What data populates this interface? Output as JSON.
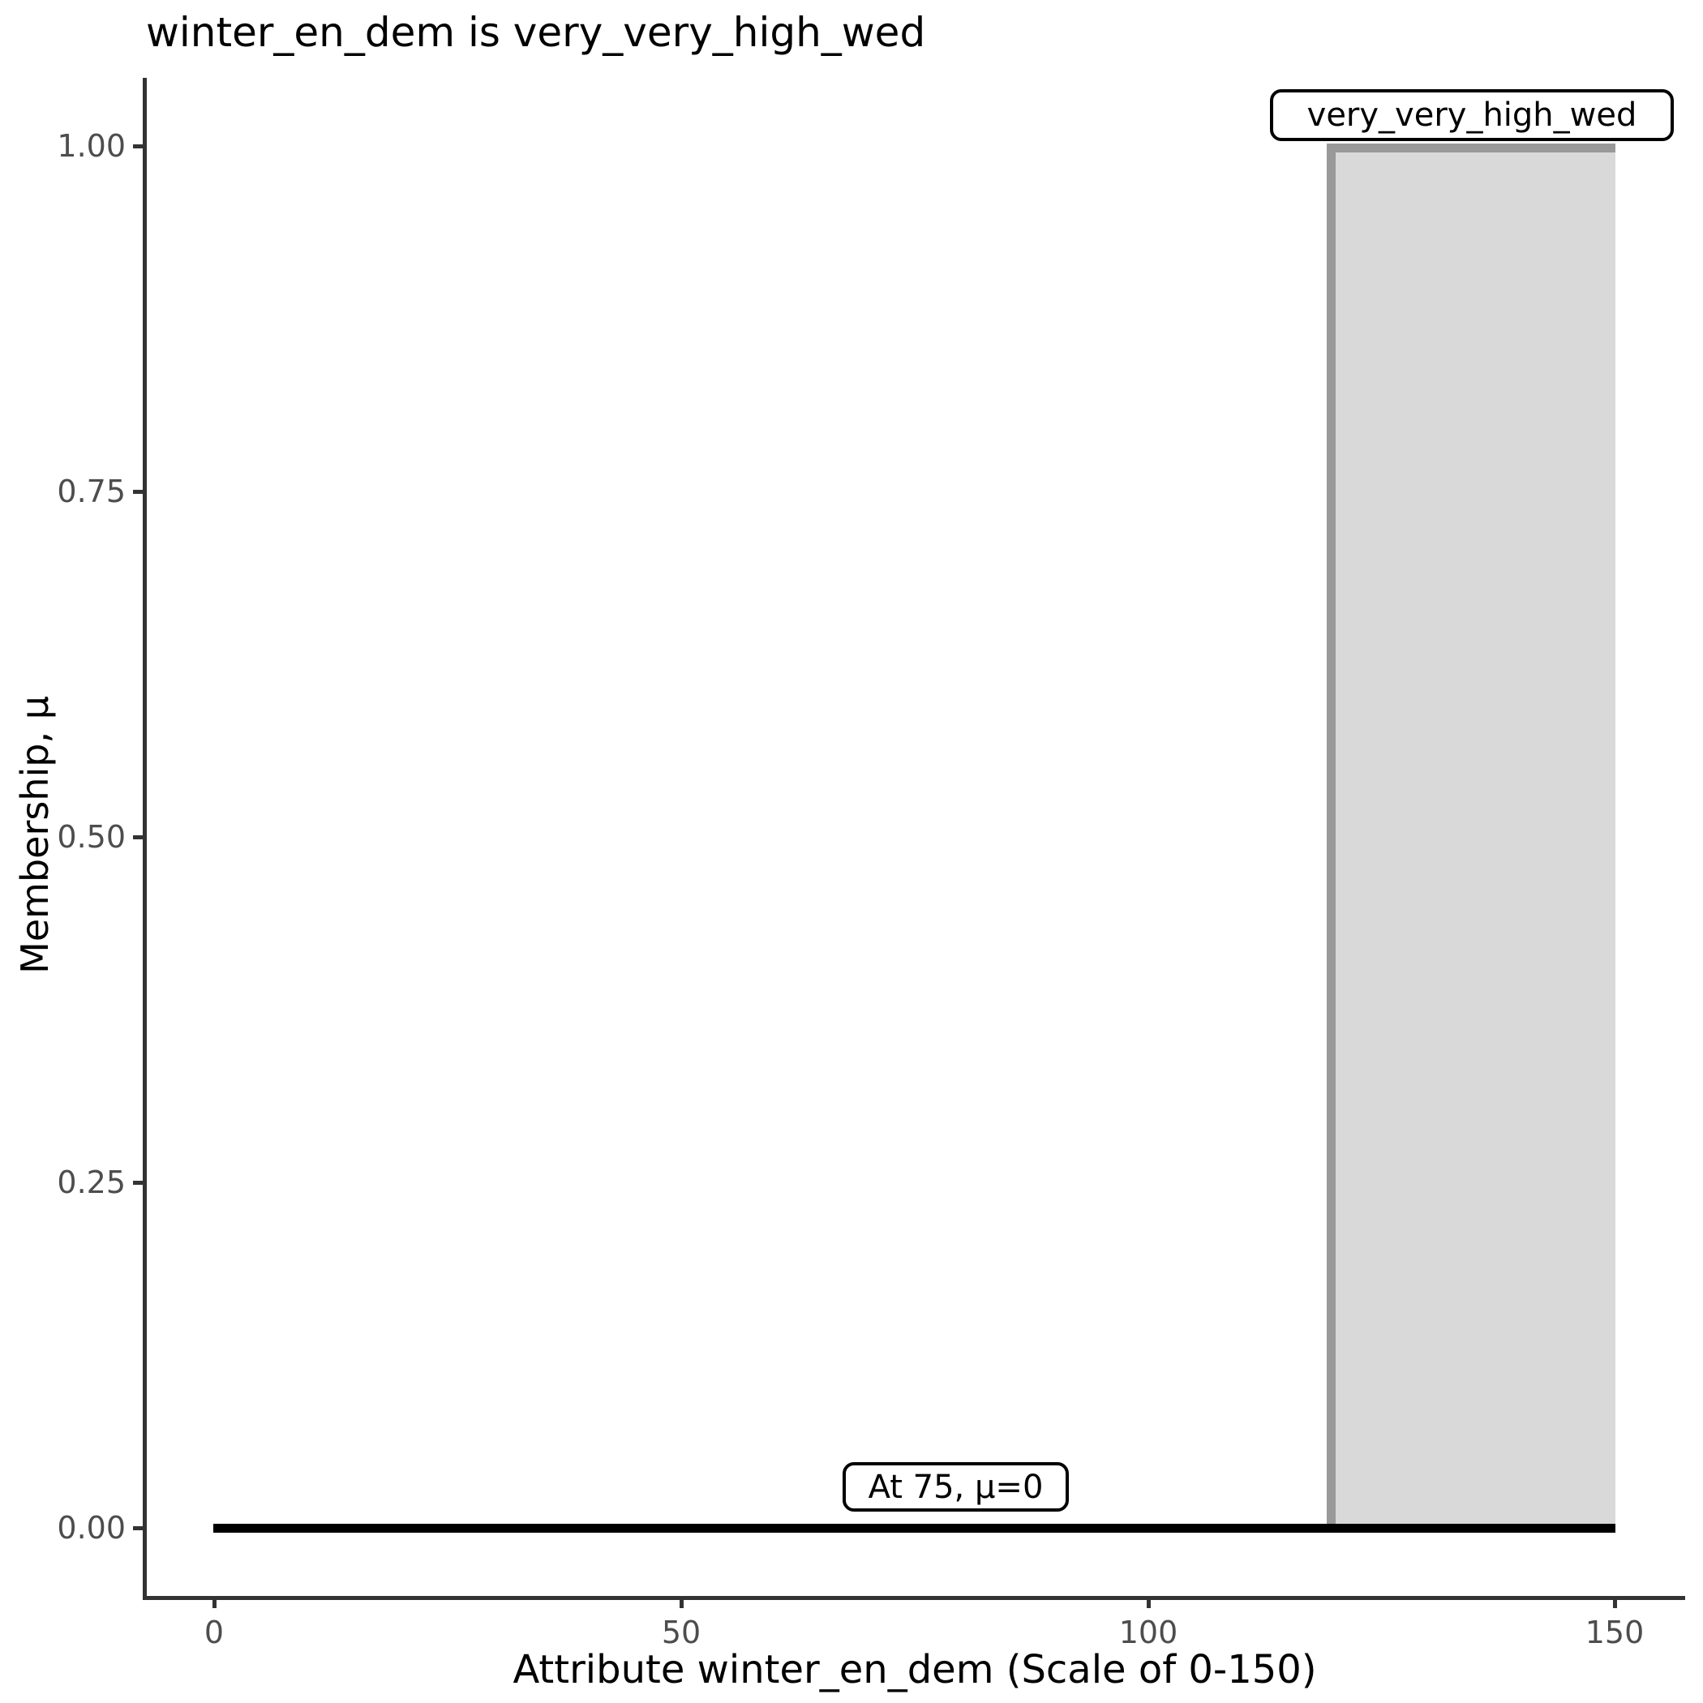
{
  "chart_data": {
    "type": "area",
    "title": "winter_en_dem is very_very_high_wed",
    "xlabel": "Attribute winter_en_dem (Scale of 0-150)",
    "ylabel": "Membership, μ",
    "xlim": [
      0,
      150
    ],
    "ylim": [
      0,
      1
    ],
    "grid": false,
    "legend_position": "none",
    "x_ticks": [
      0,
      50,
      100,
      150
    ],
    "x_tick_labels": [
      "0",
      "50",
      "100",
      "150"
    ],
    "y_ticks": [
      0,
      0.25,
      0.5,
      0.75,
      1
    ],
    "y_tick_labels": [
      "0.00",
      "0.25",
      "0.50",
      "0.75",
      "1.00"
    ],
    "series": [
      {
        "name": "very_very_high_wed",
        "type": "area",
        "x": [
          0,
          120,
          120,
          150
        ],
        "y": [
          0,
          0,
          1,
          1
        ],
        "fill": "#d9d9d9",
        "stroke": "#999999"
      },
      {
        "name": "evaluation_line",
        "type": "line",
        "x": [
          0,
          150
        ],
        "y": [
          0,
          0
        ],
        "stroke": "#000000"
      }
    ],
    "annotations": [
      {
        "text": "very_very_high_wed",
        "x": 120,
        "y": 1.0,
        "placement": "top-right"
      },
      {
        "text": "At 75, μ=0",
        "x": 75,
        "y": 0,
        "placement": "above-x-axis"
      }
    ],
    "colors": {
      "background": "#ffffff",
      "axis_line": "#333333",
      "tick_label": "#4d4d4d",
      "area_fill": "#d9d9d9",
      "area_stroke": "#999999",
      "evaluation_line": "#000000"
    }
  }
}
